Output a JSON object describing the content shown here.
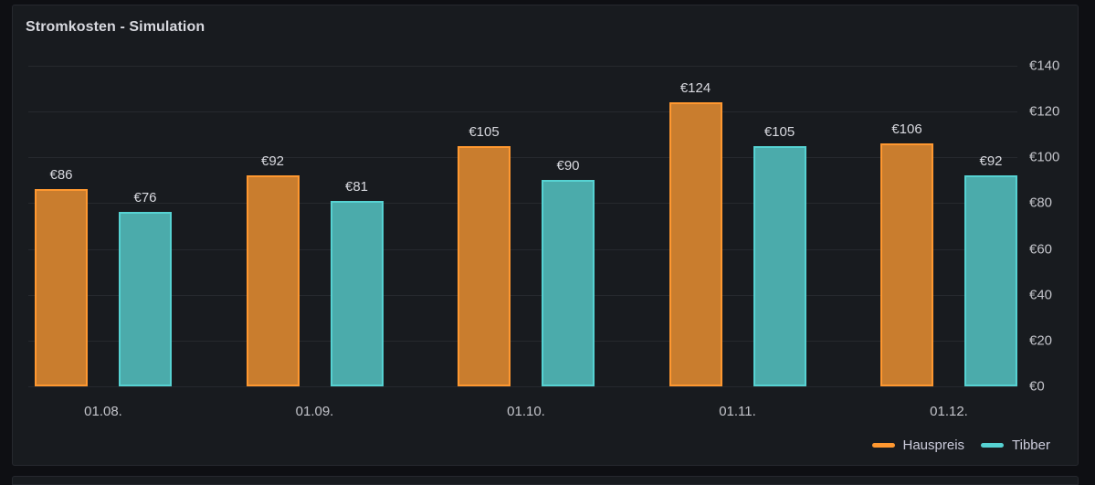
{
  "panel": {
    "title": "Stromkosten - Simulation"
  },
  "colors": {
    "page_background": "#0e0f13",
    "panel_background": "#181b1f",
    "panel_border": "#26282e",
    "gridline": "#26292e",
    "axis_text": "#c3c4ca",
    "value_text": "#d8d9df"
  },
  "chart_data": {
    "type": "bar",
    "title": "Stromkosten - Simulation",
    "categories": [
      "01.08.",
      "01.09.",
      "01.10.",
      "01.11.",
      "01.12."
    ],
    "series": [
      {
        "name": "Hauspreis",
        "stroke": "#ff9830",
        "fill": "#c97d2e",
        "values": [
          86,
          92,
          105,
          124,
          106
        ]
      },
      {
        "name": "Tibber",
        "stroke": "#56d2d2",
        "fill": "#4babab",
        "values": [
          76,
          81,
          90,
          105,
          92
        ]
      }
    ],
    "value_prefix": "€",
    "data_labels": [
      [
        "€86",
        "€92",
        "€105",
        "€124",
        "€106"
      ],
      [
        "€76",
        "€81",
        "€90",
        "€105",
        "€92"
      ]
    ],
    "xlabel": "",
    "ylabel": "",
    "ylim": [
      0,
      140
    ],
    "ytick_step": 20,
    "ytick_labels": [
      "€0",
      "€20",
      "€40",
      "€60",
      "€80",
      "€100",
      "€120",
      "€140"
    ],
    "yaxis_side": "right",
    "grid": true,
    "legend_position": "bottom-right"
  }
}
